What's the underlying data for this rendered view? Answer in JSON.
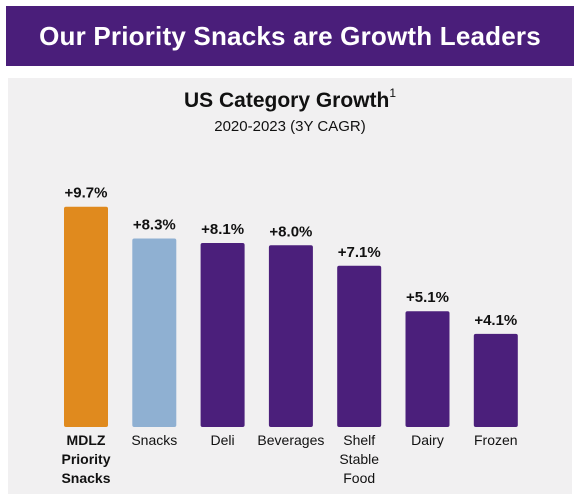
{
  "header": {
    "title": "Our Priority Snacks are Growth Leaders"
  },
  "chart_data": {
    "type": "bar",
    "title": "US Category Growth",
    "title_footnote": "1",
    "subtitle": "2020-2023  (3Y CAGR)",
    "categories": [
      [
        "MDLZ",
        "Priority",
        "Snacks"
      ],
      [
        "Snacks"
      ],
      [
        "Deli"
      ],
      [
        "Beverages"
      ],
      [
        "Shelf",
        "Stable",
        "Food"
      ],
      [
        "Dairy"
      ],
      [
        "Frozen"
      ]
    ],
    "values": [
      9.7,
      8.3,
      8.1,
      8.0,
      7.1,
      5.1,
      4.1
    ],
    "value_labels": [
      "+9.7%",
      "+8.3%",
      "+8.1%",
      "+8.0%",
      "+7.1%",
      "+5.1%",
      "+4.1%"
    ],
    "bar_colors": [
      "#e08a1e",
      "#8fb0d2",
      "#4b1f7b",
      "#4b1f7b",
      "#4b1f7b",
      "#4b1f7b",
      "#4b1f7b"
    ],
    "bold_categories": [
      true,
      false,
      false,
      false,
      false,
      false,
      false
    ],
    "ylim": [
      0,
      10.7
    ],
    "grid": false,
    "legend": "none"
  }
}
